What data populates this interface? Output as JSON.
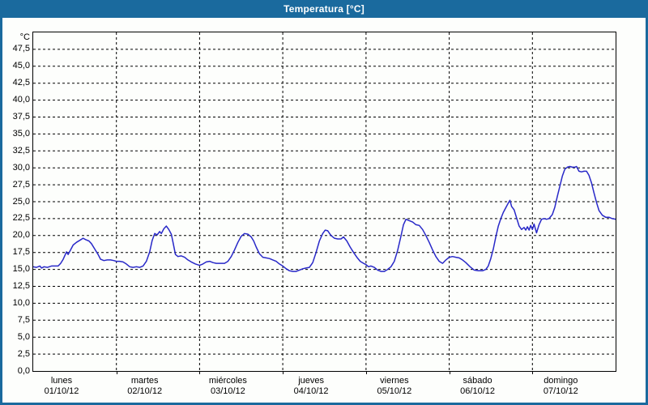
{
  "window": {
    "title": "Temperatura [°C]",
    "titlebar_color": "#1a6a9e",
    "border_color": "#1a6a9e"
  },
  "chart_data": {
    "type": "line",
    "title": "Temperatura [°C]",
    "ylabel": "°C",
    "xlabel": "",
    "ylim": [
      0,
      50
    ],
    "ytick_step": 2.5,
    "ytick_labels_top_to_bottom": [
      "47,5",
      "45,0",
      "42,5",
      "40,0",
      "37,5",
      "35,0",
      "32,5",
      "30,0",
      "27,5",
      "25,0",
      "22,5",
      "20,0",
      "17,5",
      "15,0",
      "12,5",
      "10,0",
      "7,5",
      "5,0",
      "2,5",
      "0,0"
    ],
    "grid": "dashed",
    "legend": "none",
    "line_color": "#2828c8",
    "x_axis": {
      "unit": "days",
      "range_days": 7,
      "days": [
        {
          "name": "lunes",
          "date": "01/10/12"
        },
        {
          "name": "martes",
          "date": "02/10/12"
        },
        {
          "name": "miércoles",
          "date": "03/10/12"
        },
        {
          "name": "jueves",
          "date": "04/10/12"
        },
        {
          "name": "viernes",
          "date": "05/10/12"
        },
        {
          "name": "sábado",
          "date": "06/10/12"
        },
        {
          "name": "domingo",
          "date": "07/10/12"
        }
      ]
    },
    "series": [
      {
        "name": "Temperatura",
        "points": [
          [
            0.0,
            15.4
          ],
          [
            0.04,
            15.3
          ],
          [
            0.08,
            15.5
          ],
          [
            0.1,
            15.2
          ],
          [
            0.13,
            15.4
          ],
          [
            0.17,
            15.3
          ],
          [
            0.22,
            15.5
          ],
          [
            0.26,
            15.5
          ],
          [
            0.3,
            15.5
          ],
          [
            0.33,
            15.9
          ],
          [
            0.36,
            16.5
          ],
          [
            0.4,
            17.6
          ],
          [
            0.42,
            17.2
          ],
          [
            0.45,
            17.9
          ],
          [
            0.48,
            18.6
          ],
          [
            0.52,
            19.0
          ],
          [
            0.56,
            19.3
          ],
          [
            0.6,
            19.6
          ],
          [
            0.63,
            19.4
          ],
          [
            0.67,
            19.2
          ],
          [
            0.7,
            18.8
          ],
          [
            0.74,
            18.0
          ],
          [
            0.78,
            17.2
          ],
          [
            0.81,
            16.5
          ],
          [
            0.85,
            16.3
          ],
          [
            0.89,
            16.4
          ],
          [
            0.93,
            16.4
          ],
          [
            0.97,
            16.3
          ],
          [
            1.0,
            16.2
          ],
          [
            1.04,
            16.2
          ],
          [
            1.08,
            16.1
          ],
          [
            1.12,
            15.8
          ],
          [
            1.16,
            15.4
          ],
          [
            1.2,
            15.3
          ],
          [
            1.24,
            15.4
          ],
          [
            1.28,
            15.3
          ],
          [
            1.32,
            15.5
          ],
          [
            1.36,
            16.2
          ],
          [
            1.4,
            17.6
          ],
          [
            1.43,
            19.3
          ],
          [
            1.46,
            20.3
          ],
          [
            1.49,
            20.1
          ],
          [
            1.52,
            20.6
          ],
          [
            1.54,
            20.3
          ],
          [
            1.57,
            21.0
          ],
          [
            1.6,
            21.4
          ],
          [
            1.63,
            20.9
          ],
          [
            1.66,
            20.2
          ],
          [
            1.68,
            19.0
          ],
          [
            1.71,
            17.2
          ],
          [
            1.74,
            16.9
          ],
          [
            1.78,
            17.0
          ],
          [
            1.82,
            16.8
          ],
          [
            1.86,
            16.4
          ],
          [
            1.9,
            16.1
          ],
          [
            1.95,
            15.8
          ],
          [
            2.0,
            15.6
          ],
          [
            2.04,
            15.8
          ],
          [
            2.08,
            16.1
          ],
          [
            2.12,
            16.2
          ],
          [
            2.16,
            16.0
          ],
          [
            2.2,
            15.9
          ],
          [
            2.25,
            15.9
          ],
          [
            2.3,
            15.9
          ],
          [
            2.34,
            16.2
          ],
          [
            2.38,
            16.9
          ],
          [
            2.42,
            17.9
          ],
          [
            2.46,
            19.0
          ],
          [
            2.5,
            19.9
          ],
          [
            2.54,
            20.3
          ],
          [
            2.58,
            20.2
          ],
          [
            2.62,
            19.8
          ],
          [
            2.65,
            19.2
          ],
          [
            2.68,
            18.3
          ],
          [
            2.72,
            17.3
          ],
          [
            2.76,
            16.8
          ],
          [
            2.8,
            16.7
          ],
          [
            2.84,
            16.6
          ],
          [
            2.88,
            16.4
          ],
          [
            2.92,
            16.2
          ],
          [
            2.96,
            15.8
          ],
          [
            3.0,
            15.5
          ],
          [
            3.04,
            15.1
          ],
          [
            3.08,
            14.8
          ],
          [
            3.12,
            14.7
          ],
          [
            3.16,
            14.7
          ],
          [
            3.2,
            14.9
          ],
          [
            3.24,
            15.1
          ],
          [
            3.28,
            15.2
          ],
          [
            3.32,
            15.3
          ],
          [
            3.36,
            16.0
          ],
          [
            3.4,
            17.5
          ],
          [
            3.44,
            19.2
          ],
          [
            3.48,
            20.3
          ],
          [
            3.51,
            20.8
          ],
          [
            3.54,
            20.7
          ],
          [
            3.58,
            20.0
          ],
          [
            3.62,
            19.6
          ],
          [
            3.66,
            19.5
          ],
          [
            3.7,
            19.5
          ],
          [
            3.73,
            19.8
          ],
          [
            3.77,
            19.2
          ],
          [
            3.81,
            18.3
          ],
          [
            3.85,
            17.5
          ],
          [
            3.89,
            16.8
          ],
          [
            3.93,
            16.2
          ],
          [
            3.97,
            15.9
          ],
          [
            4.0,
            15.7
          ],
          [
            4.03,
            15.4
          ],
          [
            4.06,
            15.5
          ],
          [
            4.1,
            15.3
          ],
          [
            4.14,
            14.9
          ],
          [
            4.18,
            14.7
          ],
          [
            4.22,
            14.7
          ],
          [
            4.26,
            15.0
          ],
          [
            4.3,
            15.4
          ],
          [
            4.34,
            16.2
          ],
          [
            4.38,
            17.8
          ],
          [
            4.42,
            19.9
          ],
          [
            4.45,
            21.6
          ],
          [
            4.48,
            22.4
          ],
          [
            4.52,
            22.2
          ],
          [
            4.56,
            22.0
          ],
          [
            4.6,
            21.6
          ],
          [
            4.64,
            21.5
          ],
          [
            4.68,
            20.9
          ],
          [
            4.72,
            20.0
          ],
          [
            4.76,
            19.0
          ],
          [
            4.8,
            17.9
          ],
          [
            4.84,
            16.9
          ],
          [
            4.88,
            16.2
          ],
          [
            4.92,
            15.9
          ],
          [
            4.96,
            16.4
          ],
          [
            5.0,
            16.8
          ],
          [
            5.04,
            16.9
          ],
          [
            5.08,
            16.8
          ],
          [
            5.12,
            16.7
          ],
          [
            5.16,
            16.4
          ],
          [
            5.2,
            16.0
          ],
          [
            5.25,
            15.4
          ],
          [
            5.3,
            14.9
          ],
          [
            5.35,
            14.8
          ],
          [
            5.4,
            14.8
          ],
          [
            5.44,
            15.0
          ],
          [
            5.47,
            15.5
          ],
          [
            5.5,
            16.6
          ],
          [
            5.53,
            18.0
          ],
          [
            5.56,
            19.8
          ],
          [
            5.59,
            21.4
          ],
          [
            5.62,
            22.5
          ],
          [
            5.65,
            23.4
          ],
          [
            5.68,
            24.1
          ],
          [
            5.71,
            24.8
          ],
          [
            5.73,
            25.2
          ],
          [
            5.75,
            24.3
          ],
          [
            5.78,
            23.8
          ],
          [
            5.81,
            22.6
          ],
          [
            5.84,
            21.4
          ],
          [
            5.87,
            20.9
          ],
          [
            5.9,
            21.2
          ],
          [
            5.92,
            20.8
          ],
          [
            5.94,
            21.3
          ],
          [
            5.96,
            20.8
          ],
          [
            5.98,
            21.5
          ],
          [
            6.0,
            20.9
          ],
          [
            6.02,
            21.7
          ],
          [
            6.05,
            20.4
          ],
          [
            6.08,
            21.6
          ],
          [
            6.11,
            22.4
          ],
          [
            6.14,
            22.5
          ],
          [
            6.17,
            22.4
          ],
          [
            6.2,
            22.5
          ],
          [
            6.24,
            23.1
          ],
          [
            6.27,
            24.2
          ],
          [
            6.3,
            25.8
          ],
          [
            6.33,
            27.3
          ],
          [
            6.36,
            28.8
          ],
          [
            6.39,
            29.8
          ],
          [
            6.42,
            30.1
          ],
          [
            6.45,
            30.2
          ],
          [
            6.48,
            30.1
          ],
          [
            6.51,
            30.1
          ],
          [
            6.53,
            30.2
          ],
          [
            6.56,
            29.5
          ],
          [
            6.59,
            29.4
          ],
          [
            6.62,
            29.5
          ],
          [
            6.65,
            29.5
          ],
          [
            6.68,
            28.9
          ],
          [
            6.71,
            27.8
          ],
          [
            6.74,
            26.3
          ],
          [
            6.77,
            24.9
          ],
          [
            6.8,
            23.7
          ],
          [
            6.84,
            23.0
          ],
          [
            6.88,
            22.7
          ],
          [
            6.92,
            22.7
          ],
          [
            6.96,
            22.5
          ],
          [
            7.0,
            22.4
          ]
        ]
      }
    ]
  }
}
